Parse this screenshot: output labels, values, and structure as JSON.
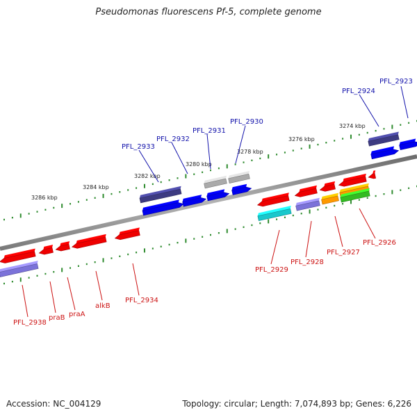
{
  "header": {
    "title": "Pseudomonas fluorescens Pf-5, complete genome"
  },
  "footer": {
    "accession": "Accession: NC_004129",
    "summary": "Topology: circular; Length: 7,074,893 bp; Genes: 6,226"
  },
  "colors": {
    "backbone": "#888888",
    "tick": "#2e8b2e",
    "forward_label": "#1010aa",
    "reverse_label": "#cc1111",
    "red": "#ee0000",
    "blue": "#0000ee",
    "navy": "#3d3b82",
    "gray": "#aaaaaa",
    "lavender": "#7b72d9",
    "cyan": "#19c8cc",
    "orange": "#ff9900",
    "green": "#33bb22"
  },
  "ruler": {
    "labels": [
      "3274 kbp",
      "3276 kbp",
      "3278 kbp",
      "3280 kbp",
      "3282 kbp",
      "3284 kbp",
      "3286 kbp"
    ]
  },
  "genes": {
    "forward_labels": [
      "PFL_2923",
      "PFL_2924",
      "PFL_2930",
      "PFL_2931",
      "PFL_2932",
      "PFL_2933"
    ],
    "reverse_labels": [
      "PFL_2926",
      "PFL_2927",
      "PFL_2928",
      "PFL_2929",
      "PFL_2934",
      "alkB",
      "praA",
      "praB",
      "PFL_2938"
    ]
  }
}
